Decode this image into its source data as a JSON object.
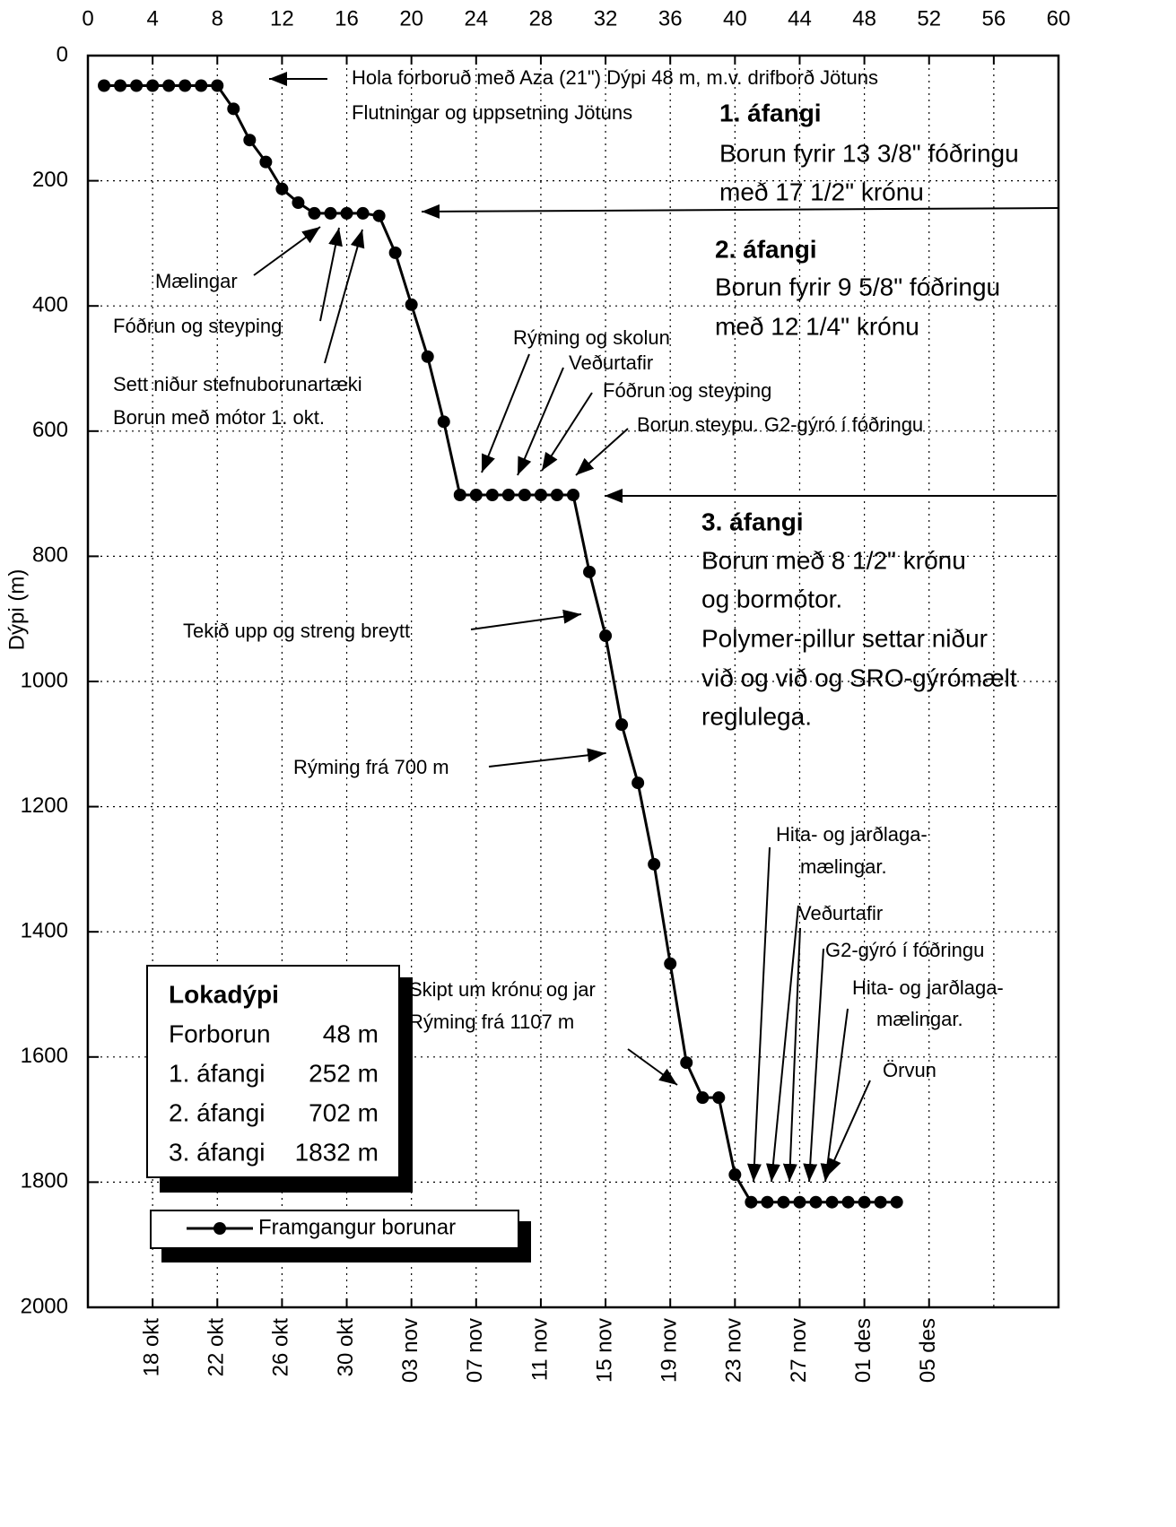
{
  "chart_data": {
    "type": "line",
    "ylabel": "Dýpi (m)",
    "xlim": [
      0,
      60
    ],
    "xticks": [
      0,
      4,
      8,
      12,
      16,
      20,
      24,
      28,
      32,
      36,
      40,
      44,
      48,
      52,
      56,
      60
    ],
    "x2ticks": [
      {
        "value": 4,
        "label": "18 okt"
      },
      {
        "value": 8,
        "label": "22 okt"
      },
      {
        "value": 12,
        "label": "26 okt"
      },
      {
        "value": 16,
        "label": "30 okt"
      },
      {
        "value": 20,
        "label": "03 nov"
      },
      {
        "value": 24,
        "label": "07 nov"
      },
      {
        "value": 28,
        "label": "11 nov"
      },
      {
        "value": 32,
        "label": "15 nov"
      },
      {
        "value": 36,
        "label": "19 nov"
      },
      {
        "value": 40,
        "label": "23 nov"
      },
      {
        "value": 44,
        "label": "27 nov"
      },
      {
        "value": 48,
        "label": "01 des"
      },
      {
        "value": 52,
        "label": "05 des"
      }
    ],
    "ylim": [
      0,
      2000
    ],
    "yticks": [
      0,
      200,
      400,
      600,
      800,
      1000,
      1200,
      1400,
      1600,
      1800,
      2000
    ],
    "y_inverted": true,
    "grid": true,
    "series": [
      {
        "name": "Framgangur borunar",
        "color": "#000000",
        "x": [
          1,
          2,
          3,
          4,
          5,
          6,
          7,
          8,
          9,
          10,
          11,
          12,
          13,
          14,
          15,
          16,
          17,
          18,
          19,
          20,
          21,
          22,
          23,
          24,
          25,
          26,
          27,
          28,
          29,
          30,
          31,
          32,
          33,
          34,
          35,
          36,
          37,
          38,
          39,
          40,
          41,
          42,
          43,
          44,
          45,
          46,
          47,
          48,
          49,
          50
        ],
        "values": [
          48,
          48,
          48,
          48,
          48,
          48,
          48,
          48,
          85,
          135,
          170,
          213,
          235,
          252,
          252,
          252,
          252,
          256,
          315,
          398,
          481,
          585,
          702,
          702,
          702,
          702,
          702,
          702,
          702,
          702,
          825,
          927,
          1069,
          1162,
          1292,
          1451,
          1609,
          1665,
          1665,
          1788,
          1832,
          1832,
          1832,
          1832,
          1832,
          1832,
          1832,
          1832,
          1832,
          1832
        ]
      }
    ],
    "annotations": [
      "Hola forboruð með Aza (21\") Dýpi 48 m, m.v. drifborð Jötuns",
      "Flutningar og uppsetning Jötuns",
      "1. áfangi",
      "Borun fyrir 13 3/8\" fóðringu",
      "með 17 1/2\" krónu",
      "2. áfangi",
      "Borun fyrir 9 5/8\" fóðringu",
      "með 12 1/4\" krónu",
      "Mælingar",
      "Fóðrun og steyping",
      "Sett niður stefnuborunartæki",
      "Borun með mótor 1. okt.",
      "Rýming og skolun",
      "Veðurtafir",
      "Fóðrun og steyping",
      "Borun steypu. G2-gýró í fóðringu",
      "3. áfangi",
      "Borun með 8 1/2\" krónu",
      "og bormótor.",
      "Polymer-pillur settar niður",
      "við og við og SRO-gýrómælt",
      "reglulega.",
      "Tekið upp og streng breytt",
      "Rýming frá 700 m",
      "Hita- og jarðlaga-",
      "mælingar.",
      "Veðurtafir",
      "G2-gýró í fóðringu",
      "Hita- og jarðlaga-",
      "mælingar.",
      "Örvun",
      "Skipt um krónu og jar",
      "Rýming frá 1107 m"
    ],
    "box": {
      "title": "Lokadýpi",
      "rows": [
        [
          "Forborun",
          "48 m"
        ],
        [
          "1. áfangi",
          "252 m"
        ],
        [
          "2. áfangi",
          "702 m"
        ],
        [
          "3. áfangi",
          "1832 m"
        ]
      ]
    }
  }
}
